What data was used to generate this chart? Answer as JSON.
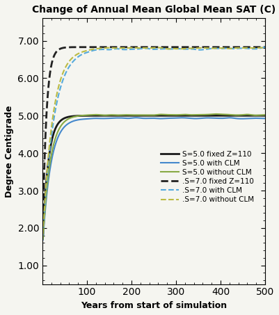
{
  "title": "Change of Annual Mean Global Mean SAT (C)",
  "xlabel": "Years from start of simulation",
  "ylabel": "Degree Centigrade",
  "ylim": [
    0.5,
    7.6
  ],
  "xlim": [
    0,
    500
  ],
  "yticks": [
    1.0,
    2.0,
    3.0,
    4.0,
    5.0,
    6.0,
    7.0
  ],
  "xticks": [
    100,
    200,
    300,
    400,
    500
  ],
  "background_color": "#f5f5f0",
  "lines": [
    {
      "label": "S=5.0 fixed Z=110",
      "color": "#1a1a1a",
      "linestyle": "solid",
      "linewidth": 2.0,
      "equilibrium": 5.0,
      "rise_speed": 0.08,
      "noise": 0.0,
      "S": 5.0
    },
    {
      "label": "S=5.0 with CLM",
      "color": "#4488cc",
      "linestyle": "solid",
      "linewidth": 1.5,
      "equilibrium": 4.93,
      "rise_speed": 0.055,
      "noise": 0.04,
      "S": 5.0
    },
    {
      "label": "S=5.0 without CLM",
      "color": "#88aa44",
      "linestyle": "solid",
      "linewidth": 1.5,
      "equilibrium": 5.02,
      "rise_speed": 0.06,
      "noise": 0.04,
      "S": 5.0
    },
    {
      "label": ".S=7.0 fixed Z=110",
      "color": "#222222",
      "linestyle": "dashed",
      "linewidth": 2.0,
      "equilibrium": 6.83,
      "rise_speed": 0.12,
      "noise": 0.0,
      "S": 7.0
    },
    {
      "label": ".S=7.0 with CLM",
      "color": "#55aadd",
      "linestyle": "dashed",
      "linewidth": 1.5,
      "equilibrium": 6.78,
      "rise_speed": 0.04,
      "noise": 0.06,
      "S": 7.0
    },
    {
      "label": ".S=7.0 without CLM",
      "color": "#bbbb44",
      "linestyle": "dashed",
      "linewidth": 1.5,
      "equilibrium": 6.8,
      "rise_speed": 0.045,
      "noise": 0.06,
      "S": 7.0
    }
  ]
}
